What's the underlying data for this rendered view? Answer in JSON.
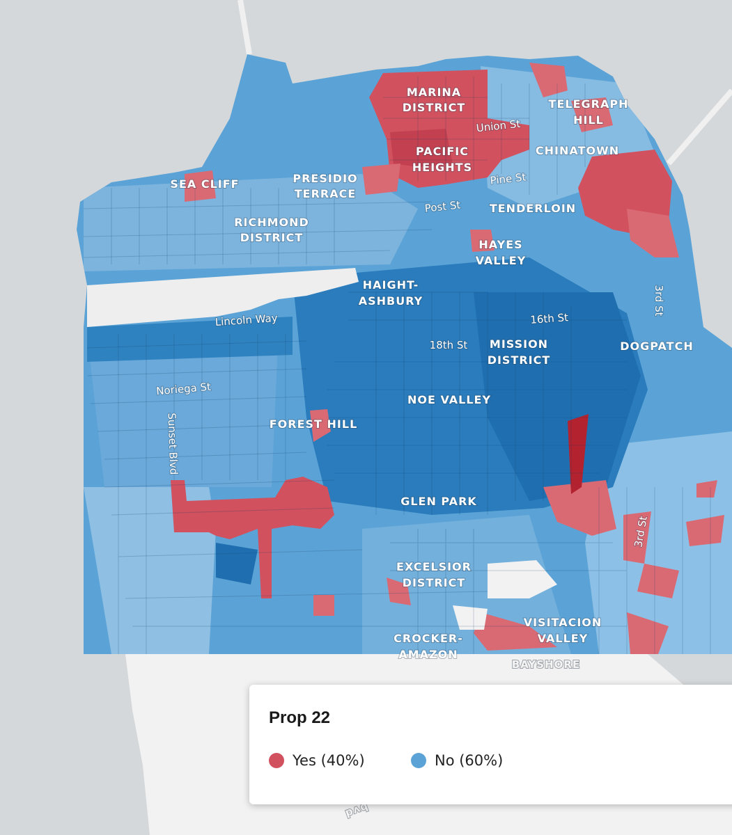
{
  "legend": {
    "title": "Prop 22",
    "items": [
      {
        "label": "Yes (40%)",
        "color": "#d1515e"
      },
      {
        "label": "No (60%)",
        "color": "#5ba3d6"
      }
    ]
  },
  "neighborhoods": {
    "marina": [
      "MARINA",
      "DISTRICT"
    ],
    "telegraph": [
      "TELEGRAPH",
      "HILL"
    ],
    "chinatown": "CHINATOWN",
    "pacific": [
      "PACIFIC",
      "HEIGHTS"
    ],
    "sea_cliff": "SEA CLIFF",
    "presidio": [
      "PRESIDIO",
      "TERRACE"
    ],
    "tenderloin": "TENDERLOIN",
    "richmond": [
      "RICHMOND",
      "DISTRICT"
    ],
    "hayes": [
      "HAYES",
      "VALLEY"
    ],
    "haight": [
      "HAIGHT-",
      "ASHBURY"
    ],
    "mission": [
      "MISSION",
      "DISTRICT"
    ],
    "dogpatch": "DOGPATCH",
    "noe": "NOE VALLEY",
    "forest": "FOREST HILL",
    "glen": "GLEN PARK",
    "excelsior": [
      "EXCELSIOR",
      "DISTRICT"
    ],
    "visitacion": [
      "VISITACION",
      "VALLEY"
    ],
    "crocker": [
      "CROCKER-",
      "AMAZON"
    ],
    "bayshore": "BAYSHORE"
  },
  "streets": {
    "union": "Union St",
    "pine": "Pine St",
    "post": "Post St",
    "lincoln": "Lincoln Way",
    "sixteenth": "16th St",
    "eighteenth": "18th St",
    "noriega": "Noriega St",
    "sunset": "Sunset Blvd",
    "third_a": "3rd St",
    "third_b": "3rd St",
    "blvd_fragment": "bvd"
  },
  "colors": {
    "yes": "#d1515e",
    "no_light": "#9cc6e6",
    "no_mid": "#5ba3d6",
    "no_dark": "#1f6fb0",
    "park": "#eeeeee",
    "land_outside": "#f4f4f4",
    "water": "#d5d8da"
  }
}
